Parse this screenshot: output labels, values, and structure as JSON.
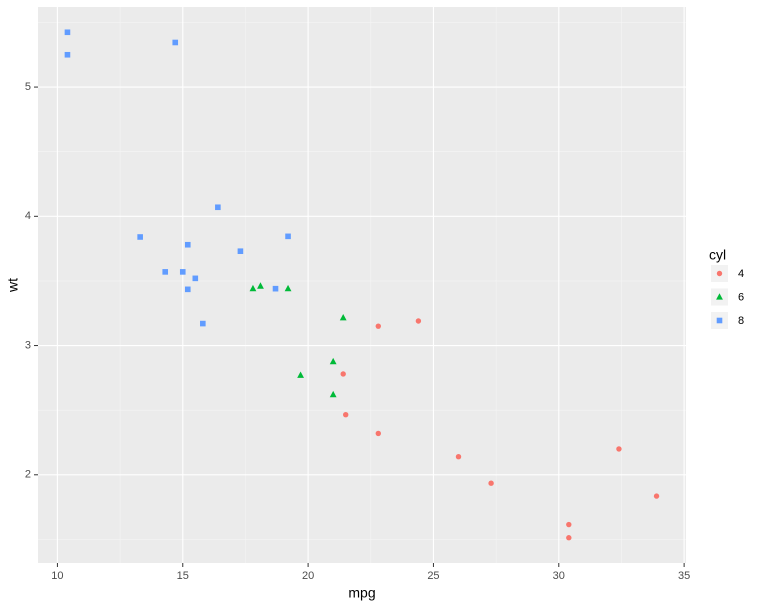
{
  "chart_data": {
    "type": "scatter",
    "x_label": "mpg",
    "y_label": "wt",
    "legend_title": "cyl",
    "legend_position": "right",
    "grid": true,
    "xlim": [
      9.225,
      35.075
    ],
    "ylim": [
      1.31745,
      5.61955
    ],
    "xticks": [
      10,
      15,
      20,
      25,
      30,
      35
    ],
    "yticks": [
      2,
      3,
      4,
      5
    ],
    "x_minor": [
      12.5,
      17.5,
      22.5,
      27.5,
      32.5
    ],
    "y_minor": [
      1.5,
      2.5,
      3.5,
      4.5,
      5.5
    ],
    "series": [
      {
        "name": "4",
        "color": "#f8766d",
        "shape": "circle",
        "x": [
          22.8,
          24.4,
          22.8,
          32.4,
          30.4,
          33.9,
          21.5,
          27.3,
          26.0,
          30.4,
          21.4
        ],
        "values": [
          2.32,
          3.19,
          3.15,
          2.2,
          1.615,
          1.835,
          2.465,
          1.935,
          2.14,
          1.513,
          2.78
        ]
      },
      {
        "name": "6",
        "color": "#00ba38",
        "shape": "triangle",
        "x": [
          21.0,
          21.0,
          21.4,
          18.1,
          19.2,
          17.8,
          19.7
        ],
        "values": [
          2.62,
          2.875,
          3.215,
          3.46,
          3.44,
          3.44,
          2.77
        ]
      },
      {
        "name": "8",
        "color": "#619cff",
        "shape": "square",
        "x": [
          18.7,
          14.3,
          16.4,
          17.3,
          15.2,
          10.4,
          10.4,
          14.7,
          15.5,
          15.2,
          13.3,
          19.2,
          15.8,
          15.0
        ],
        "values": [
          3.44,
          3.57,
          4.07,
          3.73,
          3.78,
          5.25,
          5.424,
          5.345,
          3.52,
          3.435,
          3.84,
          3.845,
          3.17,
          3.57
        ]
      }
    ]
  }
}
